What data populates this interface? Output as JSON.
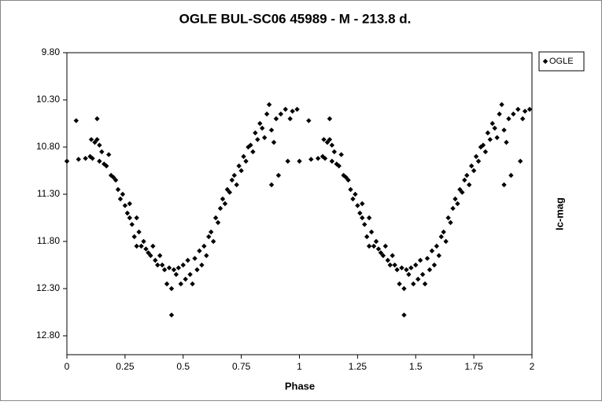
{
  "chart_data": {
    "type": "scatter",
    "title": "OGLE BUL-SC06  45989 - M - 213.8 d.",
    "xlabel": "Phase",
    "ylabel": "Ic-mag",
    "xlim": [
      0,
      2
    ],
    "xticks": [
      0,
      0.25,
      0.5,
      0.75,
      1,
      1.25,
      1.5,
      1.75,
      2
    ],
    "ylim": [
      9.8,
      13.0
    ],
    "y_reversed": true,
    "yticks": [
      {
        "value": 9.8,
        "label": "9.80"
      },
      {
        "value": 10.3,
        "label": "10.30"
      },
      {
        "value": 10.8,
        "label": "10.80"
      },
      {
        "value": 11.3,
        "label": "11.30"
      },
      {
        "value": 11.8,
        "label": "11.80"
      },
      {
        "value": 12.3,
        "label": "12.30"
      },
      {
        "value": 12.8,
        "label": "12.80"
      }
    ],
    "legend": "upper-right",
    "series": [
      {
        "name": "OGLE",
        "color": "#000000",
        "x": [
          0.0,
          0.04,
          0.05,
          0.08,
          0.1,
          0.11,
          0.105,
          0.12,
          0.13,
          0.13,
          0.14,
          0.14,
          0.15,
          0.16,
          0.17,
          0.18,
          0.19,
          0.2,
          0.21,
          0.22,
          0.23,
          0.24,
          0.25,
          0.26,
          0.27,
          0.27,
          0.28,
          0.29,
          0.3,
          0.3,
          0.31,
          0.32,
          0.33,
          0.34,
          0.35,
          0.36,
          0.37,
          0.38,
          0.39,
          0.4,
          0.41,
          0.42,
          0.43,
          0.44,
          0.45,
          0.45,
          0.46,
          0.47,
          0.48,
          0.49,
          0.5,
          0.51,
          0.52,
          0.53,
          0.54,
          0.55,
          0.56,
          0.57,
          0.58,
          0.59,
          0.6,
          0.61,
          0.62,
          0.63,
          0.64,
          0.65,
          0.66,
          0.67,
          0.68,
          0.69,
          0.7,
          0.71,
          0.72,
          0.73,
          0.74,
          0.75,
          0.76,
          0.77,
          0.78,
          0.79,
          0.8,
          0.81,
          0.82,
          0.83,
          0.84,
          0.85,
          0.86,
          0.87,
          0.88,
          0.88,
          0.89,
          0.9,
          0.91,
          0.92,
          0.94,
          0.95,
          0.96,
          0.97,
          0.99,
          1.0,
          1.04,
          1.05,
          1.08,
          1.1,
          1.11,
          1.105,
          1.12,
          1.13,
          1.13,
          1.14,
          1.14,
          1.15,
          1.16,
          1.17,
          1.18,
          1.19,
          1.2,
          1.21,
          1.22,
          1.23,
          1.24,
          1.25,
          1.26,
          1.27,
          1.27,
          1.28,
          1.29,
          1.3,
          1.3,
          1.31,
          1.32,
          1.33,
          1.34,
          1.35,
          1.36,
          1.37,
          1.38,
          1.39,
          1.4,
          1.41,
          1.42,
          1.43,
          1.44,
          1.45,
          1.45,
          1.46,
          1.47,
          1.48,
          1.49,
          1.5,
          1.51,
          1.52,
          1.53,
          1.54,
          1.55,
          1.56,
          1.57,
          1.58,
          1.59,
          1.6,
          1.61,
          1.62,
          1.63,
          1.64,
          1.65,
          1.66,
          1.67,
          1.68,
          1.69,
          1.7,
          1.71,
          1.72,
          1.73,
          1.74,
          1.75,
          1.76,
          1.77,
          1.78,
          1.79,
          1.8,
          1.81,
          1.82,
          1.83,
          1.84,
          1.85,
          1.86,
          1.87,
          1.88,
          1.88,
          1.89,
          1.9,
          1.91,
          1.92,
          1.94,
          1.95,
          1.96,
          1.97,
          1.99
        ],
        "values": [
          10.95,
          10.52,
          10.93,
          10.92,
          10.9,
          10.92,
          10.72,
          10.75,
          10.5,
          10.72,
          10.78,
          10.95,
          10.85,
          10.98,
          11.0,
          10.88,
          11.1,
          11.12,
          11.15,
          11.25,
          11.35,
          11.3,
          11.42,
          11.5,
          11.55,
          11.4,
          11.62,
          11.75,
          11.85,
          11.55,
          11.7,
          11.85,
          11.8,
          11.88,
          11.92,
          11.95,
          11.85,
          12.0,
          12.05,
          11.95,
          12.05,
          12.1,
          12.25,
          12.08,
          12.3,
          12.58,
          12.1,
          12.15,
          12.08,
          12.25,
          12.05,
          12.2,
          12.0,
          12.15,
          12.25,
          11.98,
          12.1,
          11.9,
          12.05,
          11.85,
          11.95,
          11.75,
          11.7,
          11.8,
          11.55,
          11.6,
          11.45,
          11.35,
          11.4,
          11.25,
          11.28,
          11.15,
          11.1,
          11.2,
          11.0,
          11.05,
          10.9,
          10.95,
          10.8,
          10.78,
          10.85,
          10.65,
          10.72,
          10.55,
          10.6,
          10.7,
          10.45,
          10.35,
          10.62,
          11.2,
          10.75,
          10.5,
          11.1,
          10.45,
          10.4,
          10.95,
          10.5,
          10.42,
          10.4,
          10.95,
          10.52,
          10.93,
          10.92,
          10.9,
          10.92,
          10.72,
          10.75,
          10.5,
          10.72,
          10.78,
          10.95,
          10.85,
          10.98,
          11.0,
          10.88,
          11.1,
          11.12,
          11.15,
          11.25,
          11.35,
          11.3,
          11.42,
          11.5,
          11.55,
          11.4,
          11.62,
          11.75,
          11.85,
          11.55,
          11.7,
          11.85,
          11.8,
          11.88,
          11.92,
          11.95,
          11.85,
          12.0,
          12.05,
          11.95,
          12.05,
          12.1,
          12.25,
          12.08,
          12.3,
          12.58,
          12.1,
          12.15,
          12.08,
          12.25,
          12.05,
          12.2,
          12.0,
          12.15,
          12.25,
          11.98,
          12.1,
          11.9,
          12.05,
          11.85,
          11.95,
          11.75,
          11.7,
          11.8,
          11.55,
          11.6,
          11.45,
          11.35,
          11.4,
          11.25,
          11.28,
          11.15,
          11.1,
          11.2,
          11.0,
          11.05,
          10.9,
          10.95,
          10.8,
          10.78,
          10.85,
          10.65,
          10.72,
          10.55,
          10.6,
          10.7,
          10.45,
          10.35,
          10.62,
          11.2,
          10.75,
          10.5,
          11.1,
          10.45,
          10.4,
          10.95,
          10.5,
          10.42,
          10.4
        ]
      }
    ]
  }
}
